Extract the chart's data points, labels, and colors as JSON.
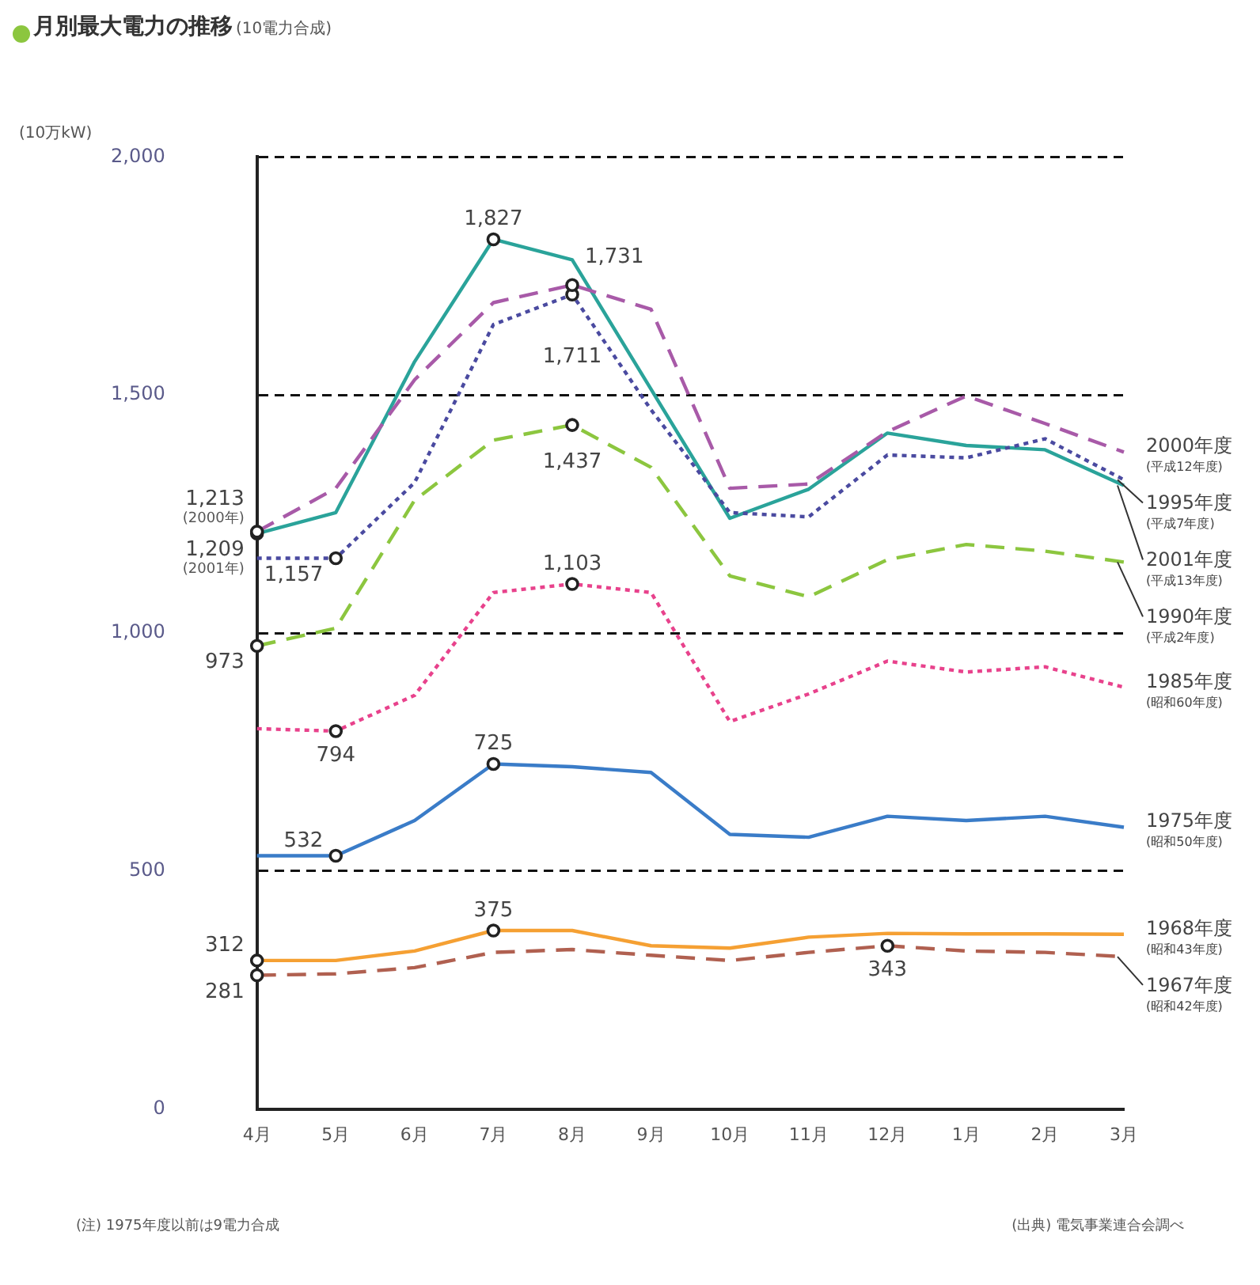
{
  "chart_data": {
    "type": "line",
    "title": "月別最大電力の推移",
    "subtitle": "(10電力合成)",
    "ylabel": "(10万kW)",
    "categories": [
      "4月",
      "5月",
      "6月",
      "7月",
      "8月",
      "9月",
      "10月",
      "11月",
      "12月",
      "1月",
      "2月",
      "3月"
    ],
    "ylim": [
      0,
      2000
    ],
    "yticks": [
      0,
      {
        "value": 500,
        "label": "500"
      },
      {
        "value": 1000,
        "label": "1,000"
      },
      {
        "value": 1500,
        "label": "1,500"
      },
      {
        "value": 2000,
        "label": "2,000"
      }
    ],
    "grid": "y",
    "legend": false,
    "series": [
      {
        "name": "2000年度 (平成12年度)",
        "color": "#a85aa8",
        "line_style": "dashed",
        "values": [
          1213,
          1304,
          1532,
          1694,
          1731,
          1680,
          1304,
          1313,
          1423,
          1498,
          1440,
          1380
        ],
        "value_labels": [
          "1,213",
          null,
          null,
          null,
          "1,731",
          null,
          null,
          null,
          null,
          null,
          null,
          null
        ]
      },
      {
        "name": "1995年度 (平成7年度)",
        "color": "#4a4aa0",
        "line_style": "dotted",
        "values": [
          1157,
          1157,
          1316,
          1648,
          1711,
          1469,
          1253,
          1244,
          1374,
          1368,
          1408,
          1322
        ],
        "value_labels": [
          null,
          "1,157",
          null,
          null,
          "1,711",
          null,
          null,
          null,
          null,
          null,
          null,
          null
        ]
      },
      {
        "name": "2001年度 (平成13年度)",
        "color": "#2aa39a",
        "line_style": "solid",
        "values": [
          1209,
          1253,
          1570,
          1827,
          1784,
          1512,
          1241,
          1302,
          1420,
          1394,
          1385,
          1310
        ],
        "value_labels": [
          "1,209",
          null,
          null,
          "1,827",
          null,
          null,
          null,
          null,
          null,
          null,
          null,
          null
        ]
      },
      {
        "name": "1990年度 (平成2年度)",
        "color": "#8cc63f",
        "line_style": "dashed",
        "values": [
          973,
          1010,
          1279,
          1405,
          1437,
          1348,
          1120,
          1076,
          1154,
          1186,
          1172,
          1149
        ],
        "value_labels": [
          "973",
          null,
          null,
          null,
          "1,437",
          null,
          null,
          null,
          null,
          null,
          null,
          null
        ]
      },
      {
        "name": "1985年度 (昭和60年度)",
        "color": "#e8428c",
        "line_style": "dotted",
        "values": [
          799,
          794,
          869,
          1085,
          1103,
          1085,
          814,
          872,
          941,
          918,
          929,
          886
        ],
        "value_labels": [
          null,
          "794",
          null,
          null,
          "1,103",
          null,
          null,
          null,
          null,
          null,
          null,
          null
        ]
      },
      {
        "name": "1975年度 (昭和50年度)",
        "color": "#3a7cc8",
        "line_style": "solid",
        "values": [
          532,
          532,
          606,
          725,
          719,
          707,
          577,
          571,
          615,
          606,
          615,
          592
        ],
        "value_labels": [
          null,
          "532",
          null,
          "725",
          null,
          null,
          null,
          null,
          null,
          null,
          null,
          null
        ]
      },
      {
        "name": "1968年度 (昭和43年度)",
        "color": "#f5a033",
        "line_style": "solid",
        "values": [
          312,
          312,
          332,
          375,
          375,
          343,
          338,
          361,
          369,
          368,
          368,
          367
        ],
        "value_labels": [
          "312",
          null,
          null,
          "375",
          null,
          null,
          null,
          null,
          null,
          null,
          null,
          null
        ]
      },
      {
        "name": "1967年度 (昭和42年度)",
        "color": "#b06050",
        "line_style": "dashed",
        "values": [
          281,
          284,
          297,
          329,
          335,
          323,
          312,
          329,
          343,
          332,
          329,
          320
        ],
        "value_labels": [
          "281",
          null,
          null,
          null,
          null,
          null,
          null,
          null,
          "343",
          null,
          null,
          null
        ]
      }
    ],
    "annotations": [
      {
        "text": "(2000年)",
        "x": "4月",
        "y": 1213
      },
      {
        "text": "(2001年)",
        "x": "4月",
        "y": 1209
      },
      "(注) 1975年度以前は9電力合成",
      "(出典) 電気事業連合会調べ"
    ]
  }
}
